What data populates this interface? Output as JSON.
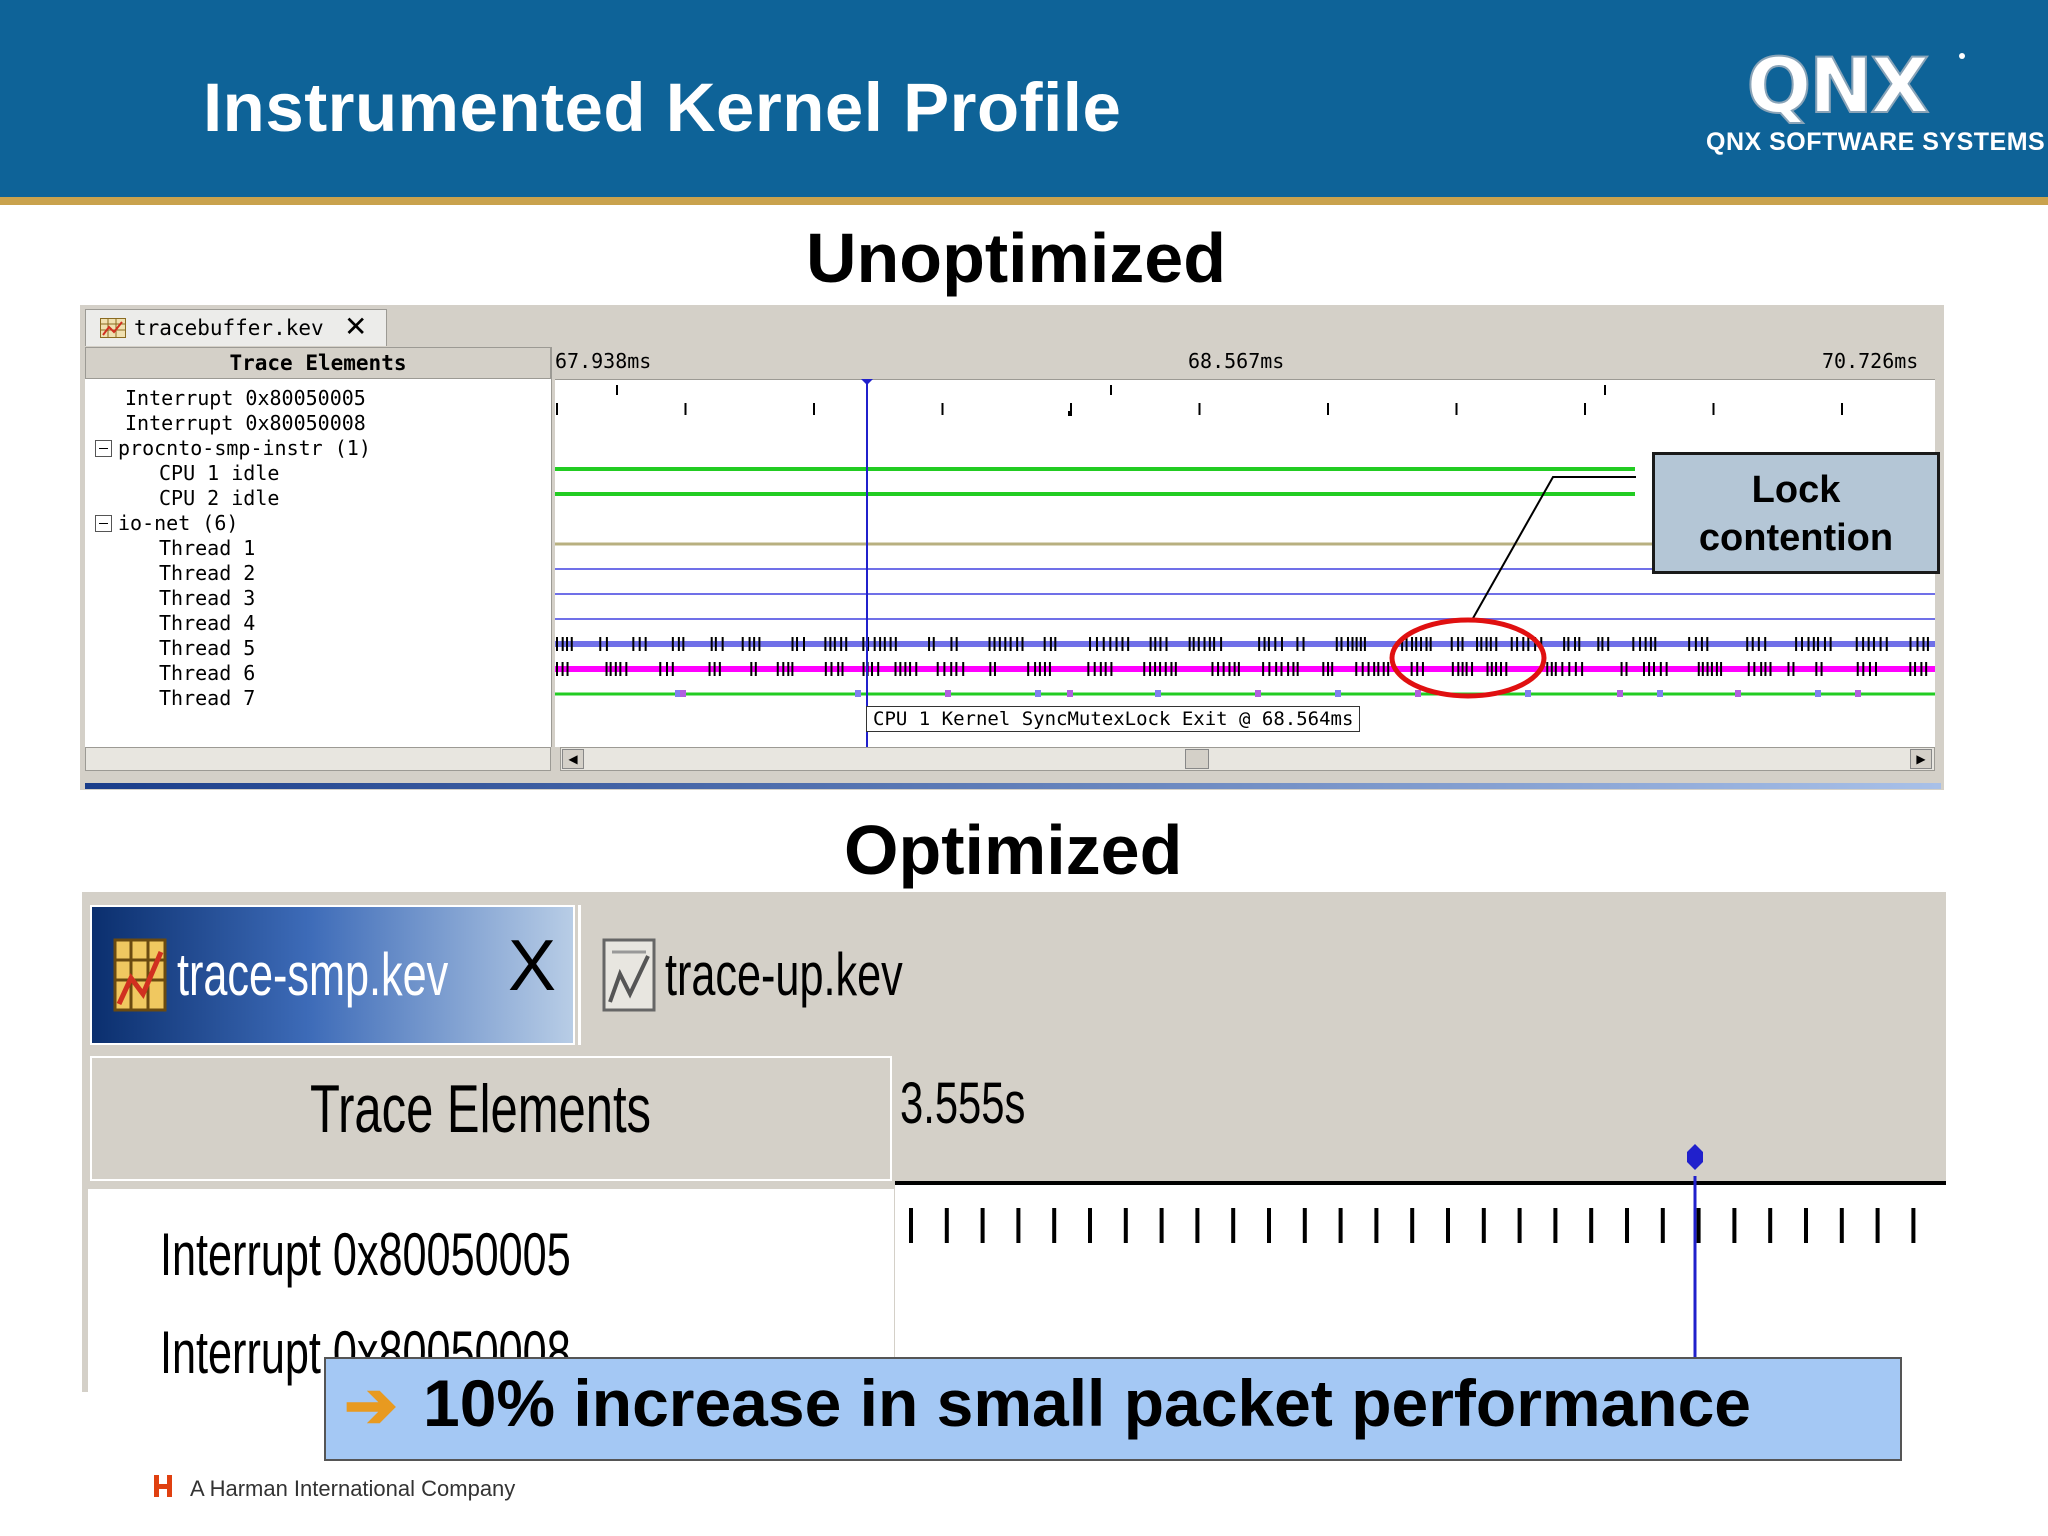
{
  "header": {
    "title": "Instrumented Kernel Profile",
    "logo_text": "QNX",
    "logo_subtext": "QNX SOFTWARE SYSTEMS",
    "background_color": "#0e6398",
    "stripe_color": "#c9a24d"
  },
  "unoptimized": {
    "section_title": "Unoptimized",
    "tab": {
      "label": "tracebuffer.kev",
      "icon": "trace-log-icon",
      "close": "✕"
    },
    "tree_header": "Trace Elements",
    "tree_items": [
      {
        "label": "Interrupt 0x80050005",
        "indent": 0,
        "toggle": false
      },
      {
        "label": "Interrupt 0x80050008",
        "indent": 0,
        "toggle": false
      },
      {
        "label": "procnto-smp-instr (1)",
        "indent": 0,
        "toggle": true
      },
      {
        "label": "CPU 1 idle",
        "indent": 1,
        "toggle": false
      },
      {
        "label": "CPU 2 idle",
        "indent": 1,
        "toggle": false
      },
      {
        "label": "io-net (6)",
        "indent": 0,
        "toggle": true
      },
      {
        "label": "Thread 1",
        "indent": 1,
        "toggle": false
      },
      {
        "label": "Thread 2",
        "indent": 1,
        "toggle": false
      },
      {
        "label": "Thread 3",
        "indent": 1,
        "toggle": false
      },
      {
        "label": "Thread 4",
        "indent": 1,
        "toggle": false
      },
      {
        "label": "Thread 5",
        "indent": 1,
        "toggle": false
      },
      {
        "label": "Thread 6",
        "indent": 1,
        "toggle": false
      },
      {
        "label": "Thread 7",
        "indent": 1,
        "toggle": false
      }
    ],
    "time_start": "67.938ms",
    "time_mid": "68.567ms",
    "time_end": "70.726ms",
    "tooltip": "CPU 1 Kernel SyncMutexLock Exit @ 68.564ms",
    "callout": {
      "line1": "Lock",
      "line2": "contention"
    },
    "colors": {
      "idle": "#22cc22",
      "thread_tan": "#b8b080",
      "thread_blue": "#7070e8",
      "thread_magenta": "#ff00ff",
      "cursor": "#2020cc",
      "circle": "#e01010"
    }
  },
  "optimized": {
    "section_title": "Optimized",
    "tabs": [
      {
        "label": "trace-smp.kev",
        "icon": "trace-log-icon",
        "active": true
      },
      {
        "label": "trace-up.kev",
        "icon": "trace-log-icon",
        "active": false
      }
    ],
    "close": "X",
    "tree_header": "Trace Elements",
    "tree_items": [
      {
        "label": "Interrupt 0x80050005"
      },
      {
        "label": "Interrupt 0x80050008"
      }
    ],
    "time_label": "3.555s"
  },
  "banner": {
    "arrow": "➔",
    "text": "10% increase in small packet performance",
    "background_color": "#a4c8f4"
  },
  "footer": {
    "text": "A Harman International Company",
    "logo_icon": "harman-h-icon"
  }
}
